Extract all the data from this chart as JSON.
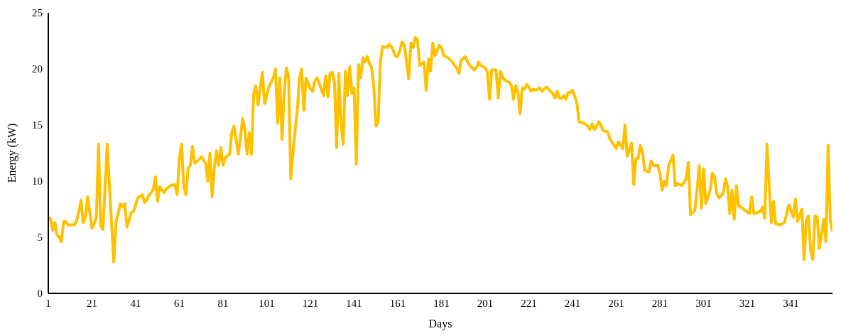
{
  "chart_data": {
    "type": "line",
    "xlabel": "Days",
    "ylabel": "Energy (kW)",
    "x": [
      1,
      2,
      3,
      4,
      5,
      6,
      7,
      8,
      9,
      10,
      13,
      14,
      15,
      16,
      17,
      18,
      19,
      20,
      21,
      22,
      23,
      24,
      25,
      26,
      28,
      29,
      31,
      32,
      34,
      35,
      36,
      37,
      39,
      40,
      42,
      44,
      45,
      46,
      47,
      49,
      50,
      51,
      52,
      54,
      55,
      57,
      59,
      60,
      61,
      62,
      63,
      64,
      65,
      66,
      67,
      68,
      70,
      71,
      73,
      74,
      75,
      76,
      77,
      78,
      79,
      80,
      81,
      82,
      84,
      85,
      86,
      87,
      88,
      90,
      91,
      92,
      93,
      94,
      95,
      96,
      97,
      99,
      100,
      101,
      102,
      104,
      105,
      106,
      107,
      108,
      109,
      110,
      111,
      112,
      114,
      115,
      116,
      117,
      118,
      119,
      121,
      122,
      123,
      124,
      125,
      126,
      127,
      128,
      129,
      130,
      131,
      132,
      133,
      134,
      135,
      136,
      137,
      138,
      139,
      140,
      141,
      142,
      143,
      144,
      145,
      146,
      147,
      148,
      149,
      150,
      151,
      152,
      153,
      154,
      156,
      157,
      158,
      159,
      160,
      161,
      162,
      163,
      164,
      166,
      167,
      168,
      169,
      170,
      171,
      173,
      174,
      175,
      176,
      177,
      178,
      179,
      180,
      181,
      182,
      184,
      186,
      187,
      188,
      189,
      190,
      192,
      193,
      194,
      196,
      197,
      198,
      199,
      201,
      202,
      203,
      204,
      206,
      207,
      208,
      209,
      210,
      212,
      213,
      214,
      215,
      216,
      217,
      218,
      219,
      220,
      221,
      222,
      223,
      224,
      226,
      227,
      229,
      231,
      232,
      233,
      234,
      235,
      236,
      237,
      238,
      239,
      240,
      241,
      242,
      243,
      244,
      245,
      246,
      248,
      249,
      250,
      251,
      252,
      253,
      254,
      255,
      257,
      258,
      259,
      260,
      261,
      262,
      264,
      265,
      266,
      268,
      269,
      270,
      271,
      272,
      273,
      274,
      276,
      277,
      278,
      280,
      281,
      282,
      283,
      284,
      285,
      287,
      288,
      289,
      291,
      293,
      294,
      295,
      297,
      298,
      299,
      300,
      301,
      302,
      304,
      305,
      306,
      307,
      308,
      310,
      311,
      312,
      313,
      314,
      315,
      316,
      317,
      318,
      320,
      322,
      323,
      324,
      327,
      328,
      329,
      330,
      332,
      333,
      334,
      336,
      338,
      340,
      342,
      343,
      344,
      346,
      347,
      348,
      349,
      350,
      351,
      352,
      353,
      354,
      356,
      357,
      358,
      359,
      360
    ],
    "series": [
      {
        "color": "#ffc000",
        "values": [
          6.7,
          6.7,
          5.6,
          6.3,
          5.2,
          5.0,
          4.6,
          6.4,
          6.4,
          6.1,
          6.1,
          6.5,
          7.3,
          8.3,
          6.3,
          6.8,
          8.6,
          7.2,
          5.8,
          6.2,
          6.8,
          13.3,
          6.0,
          5.7,
          13.3,
          9.5,
          2.8,
          6.3,
          8.0,
          7.7,
          8.0,
          5.9,
          7.2,
          7.3,
          8.5,
          8.8,
          8.1,
          8.3,
          8.7,
          9.2,
          10.4,
          8.2,
          9.5,
          9.0,
          9.3,
          9.6,
          9.7,
          8.8,
          12.0,
          13.3,
          9.5,
          8.8,
          11.1,
          11.4,
          13.1,
          11.6,
          11.9,
          12.2,
          11.6,
          10.0,
          12.5,
          8.6,
          11.2,
          12.7,
          11.4,
          13.0,
          11.4,
          12.1,
          12.4,
          14.3,
          14.9,
          13.6,
          12.4,
          15.6,
          14.6,
          12.4,
          14.3,
          12.4,
          17.8,
          18.5,
          16.8,
          19.7,
          16.9,
          17.6,
          18.4,
          19.2,
          20.0,
          15.2,
          19.2,
          13.7,
          17.9,
          20.1,
          19.3,
          10.2,
          14.6,
          16.3,
          19.2,
          20.0,
          16.3,
          19.2,
          18.2,
          18.0,
          18.9,
          19.2,
          18.7,
          18.2,
          17.6,
          19.4,
          17.5,
          19.6,
          19.7,
          18.8,
          13.0,
          19.6,
          15.2,
          13.3,
          19.8,
          17.6,
          20.2,
          17.8,
          18.3,
          11.5,
          20.4,
          19.2,
          21.0,
          20.6,
          21.1,
          20.5,
          20.1,
          18.5,
          14.9,
          15.3,
          20.6,
          22.0,
          21.9,
          22.2,
          22.0,
          21.6,
          21.1,
          21.1,
          21.7,
          22.4,
          22.1,
          19.1,
          22.3,
          21.9,
          22.8,
          22.6,
          20.3,
          20.6,
          18.1,
          20.9,
          19.8,
          22.3,
          21.2,
          21.6,
          22.1,
          21.9,
          21.2,
          21.0,
          20.6,
          20.3,
          20.1,
          19.6,
          20.8,
          21.1,
          20.6,
          20.3,
          19.9,
          20.1,
          20.6,
          20.3,
          20.1,
          19.7,
          17.3,
          19.9,
          19.9,
          17.4,
          19.8,
          19.3,
          19.0,
          18.8,
          18.5,
          17.3,
          18.5,
          17.9,
          16.0,
          18.3,
          18.2,
          18.6,
          18.4,
          18.0,
          18.2,
          18.1,
          18.3,
          18.0,
          18.4,
          18.0,
          17.8,
          17.4,
          18.0,
          17.4,
          17.4,
          17.6,
          17.3,
          17.9,
          17.9,
          18.1,
          17.6,
          16.9,
          15.3,
          15.2,
          15.2,
          14.9,
          14.6,
          15.1,
          14.6,
          14.9,
          15.3,
          15.0,
          14.5,
          14.4,
          13.8,
          13.5,
          13.2,
          12.9,
          13.5,
          12.9,
          15.0,
          12.2,
          13.4,
          9.7,
          12.0,
          12.0,
          13.2,
          12.6,
          11.0,
          10.8,
          11.8,
          11.4,
          11.4,
          10.7,
          9.2,
          10.0,
          9.6,
          11.4,
          12.3,
          9.6,
          9.8,
          9.6,
          10.2,
          11.7,
          7.0,
          7.4,
          9.2,
          11.4,
          7.6,
          11.1,
          8.0,
          9.2,
          10.7,
          10.4,
          8.9,
          8.5,
          8.9,
          10.2,
          9.5,
          7.1,
          9.2,
          6.6,
          9.6,
          7.8,
          7.7,
          7.4,
          7.1,
          8.6,
          7.1,
          7.3,
          7.7,
          6.7,
          13.3,
          6.3,
          8.2,
          6.2,
          6.1,
          6.3,
          7.9,
          6.8,
          8.4,
          6.4,
          7.5,
          3.0,
          6.5,
          6.9,
          3.8,
          3.0,
          6.9,
          6.8,
          4.0,
          6.6,
          4.6,
          13.2,
          6.5,
          5.5
        ]
      }
    ],
    "xlim": [
      1,
      360
    ],
    "xticks": [
      1,
      21,
      41,
      61,
      81,
      101,
      121,
      141,
      161,
      181,
      201,
      221,
      241,
      261,
      281,
      301,
      321,
      341
    ],
    "ylim": [
      0,
      25
    ],
    "yticks": [
      0,
      5,
      10,
      15,
      20,
      25
    ],
    "grid": false,
    "legend": false,
    "marker": "none",
    "line_style": "solid"
  }
}
